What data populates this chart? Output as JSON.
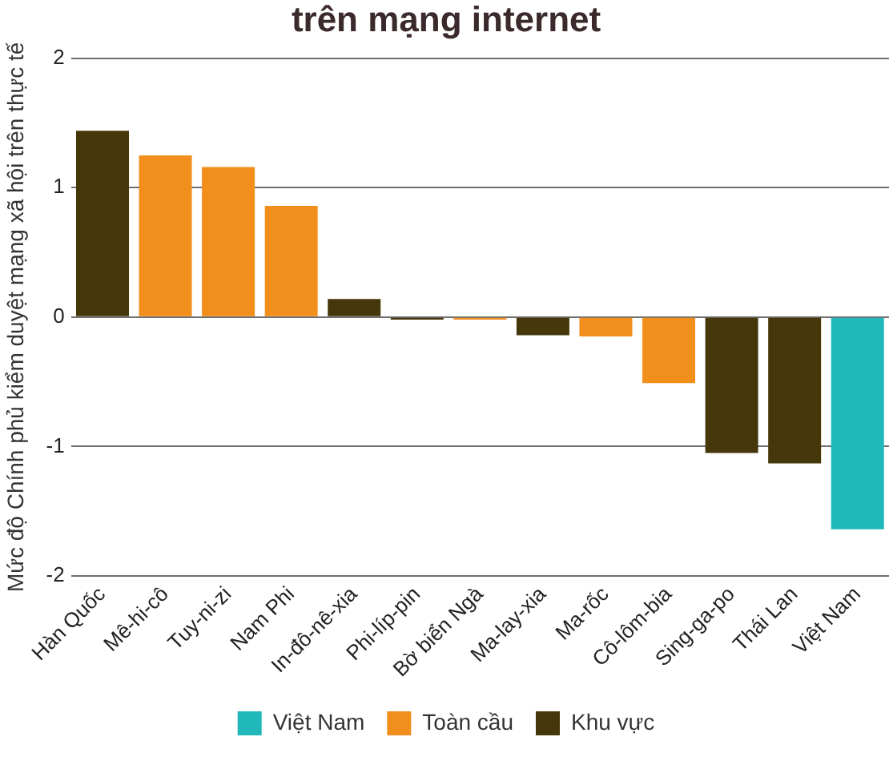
{
  "chart_data": {
    "type": "bar",
    "title": "trên mạng internet",
    "ylabel": "Mức độ Chính phủ kiểm duyệt mạng xã hội trên thực tế",
    "categories": [
      "Hàn Quốc",
      "Mê-hi-cô",
      "Tuy-ni-zi",
      "Nam Phi",
      "In-đô-nê-xia",
      "Phi-líp-pin",
      "Bờ biển Ngà",
      "Ma-lay-xia",
      "Ma-rốc",
      "Cô-lôm-bia",
      "Sing-ga-po",
      "Thái Lan",
      "Việt Nam"
    ],
    "series": [
      {
        "name": "Việt Nam",
        "color": "#21b8bc",
        "values": [
          null,
          null,
          null,
          null,
          null,
          null,
          null,
          null,
          null,
          null,
          null,
          null,
          -1.64
        ]
      },
      {
        "name": "Toàn cầu",
        "color": "#f28e1b",
        "values": [
          null,
          1.25,
          1.16,
          0.86,
          null,
          null,
          -0.02,
          null,
          -0.15,
          -0.51,
          null,
          null,
          null
        ]
      },
      {
        "name": "Khu vực",
        "color": "#45370a",
        "values": [
          1.44,
          null,
          null,
          null,
          0.14,
          -0.02,
          null,
          -0.14,
          null,
          null,
          -1.05,
          -1.13,
          null
        ]
      }
    ],
    "ylim": [
      -2,
      2
    ],
    "yticks": [
      -2,
      -1,
      0,
      1,
      2
    ],
    "grid": "y",
    "legend": "bottom"
  }
}
